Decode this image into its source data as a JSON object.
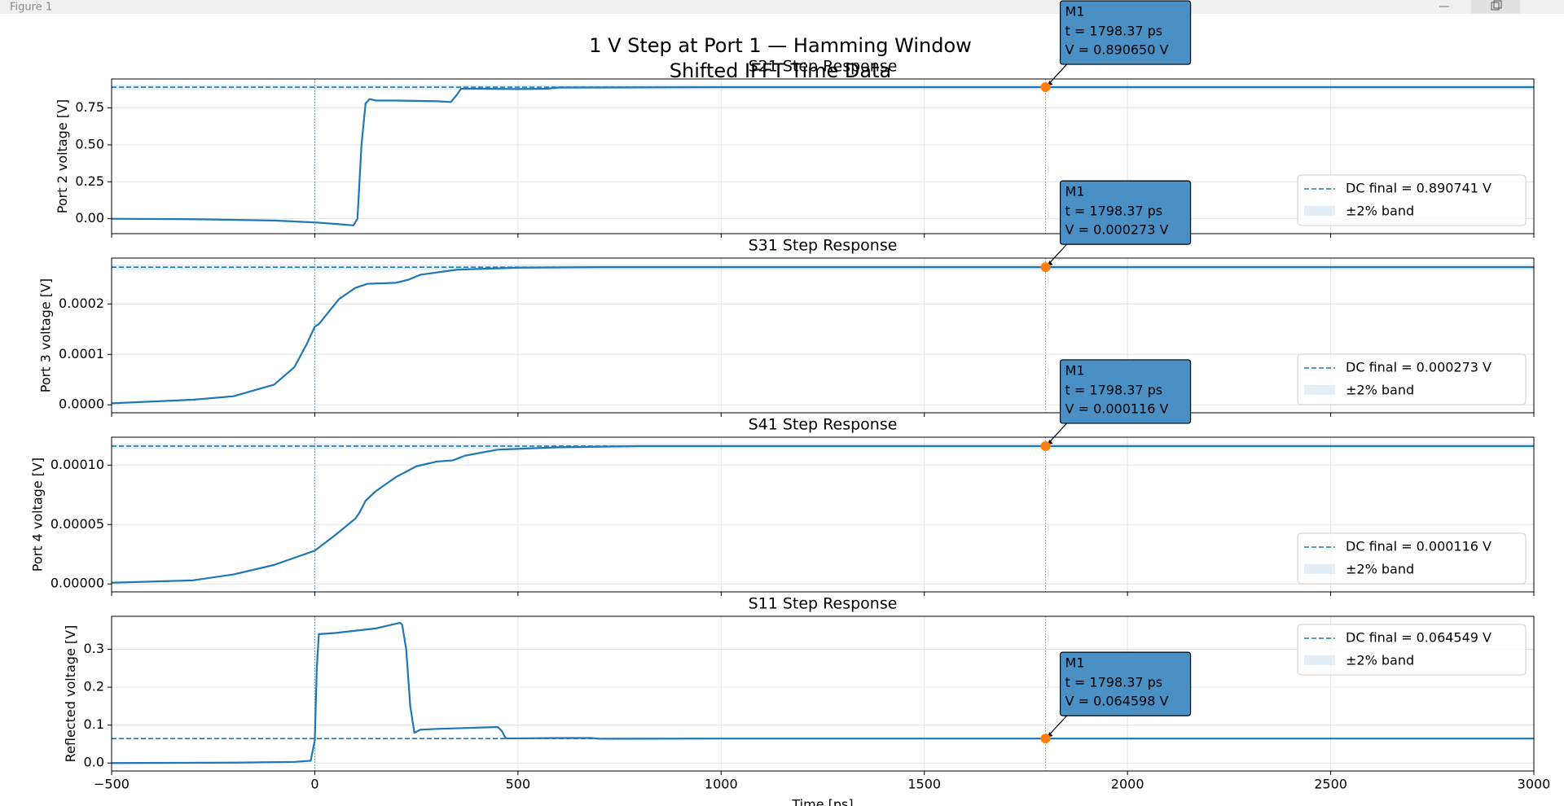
{
  "window": {
    "title": "Figure 1"
  },
  "figure": {
    "title": [
      "1 V Step at Port 1 — Hamming Window",
      "Shifted IFFT Time Data"
    ],
    "xlabel": "Time [ps]",
    "xlim": [
      -500,
      3000
    ],
    "xticks": [
      {
        "value": -500,
        "label": "−500"
      },
      0,
      500,
      1000,
      1500,
      2000,
      2500,
      3000
    ]
  },
  "chart_data": [
    {
      "type": "line",
      "title": "S21 Step Response",
      "ylabel": "Port 2 voltage [V]",
      "grid": true,
      "legend": "lower right",
      "ylim": [
        -0.101,
        0.946
      ],
      "yticks": [
        {
          "value": 0,
          "label": "0.00"
        },
        {
          "value": 0.25,
          "label": "0.25"
        },
        {
          "value": 0.5,
          "label": "0.50"
        },
        {
          "value": 0.75,
          "label": "0.75"
        }
      ],
      "x": [
        -500,
        -300,
        -100,
        0,
        50,
        95,
        105,
        115,
        125,
        135,
        150,
        200,
        300,
        335,
        350,
        360,
        400,
        500,
        570,
        600,
        1000,
        1500,
        2000,
        3000
      ],
      "series": [
        {
          "color": "#1f77b4",
          "values": [
            0,
            -0.003,
            -0.012,
            -0.025,
            -0.035,
            -0.045,
            0.0,
            0.5,
            0.78,
            0.81,
            0.8,
            0.8,
            0.795,
            0.79,
            0.84,
            0.88,
            0.88,
            0.878,
            0.88,
            0.888,
            0.8905,
            0.8907,
            0.8907,
            0.8907
          ]
        }
      ],
      "reference": {
        "name": "DC final = 0.890741 V",
        "value": 0.890741,
        "color": "#1f77b4"
      },
      "band": {
        "name": "±2% band",
        "percent": 2,
        "color": "#1f77b4"
      },
      "vline": 0,
      "marker": {
        "name": "M1",
        "x": 1798.37,
        "y": 0.89065,
        "labels": [
          "t = 1798.37 ps",
          "V = 0.890650 V"
        ],
        "color": "#ff7f0e"
      }
    },
    {
      "type": "line",
      "title": "S31 Step Response",
      "ylabel": "Port 3 voltage [V]",
      "grid": true,
      "legend": "lower right",
      "ylim": [
        -1.58e-05,
        0.000291
      ],
      "yticks": [
        {
          "value": 0,
          "label": "0.0000"
        },
        {
          "value": 0.0001,
          "label": "0.0001"
        },
        {
          "value": 0.0002,
          "label": "0.0002"
        }
      ],
      "x": [
        -500,
        -300,
        -200,
        -100,
        -50,
        -20,
        0,
        10,
        30,
        60,
        100,
        130,
        200,
        230,
        260,
        350,
        500,
        700,
        3000
      ],
      "series": [
        {
          "color": "#1f77b4",
          "values": [
            3e-06,
            1e-05,
            1.7e-05,
            4e-05,
            7.5e-05,
            0.00012,
            0.000155,
            0.00016,
            0.00018,
            0.00021,
            0.000232,
            0.00024,
            0.000242,
            0.000248,
            0.000258,
            0.000268,
            0.000272,
            0.000273,
            0.000273
          ]
        }
      ],
      "reference": {
        "name": "DC final = 0.000273 V",
        "value": 0.000273,
        "color": "#1f77b4"
      },
      "band": {
        "name": "±2% band",
        "percent": 2,
        "color": "#1f77b4"
      },
      "vline": 0,
      "marker": {
        "name": "M1",
        "x": 1798.37,
        "y": 0.000273,
        "labels": [
          "t = 1798.37 ps",
          "V = 0.000273 V"
        ],
        "color": "#ff7f0e"
      }
    },
    {
      "type": "line",
      "title": "S41 Step Response",
      "ylabel": "Port 4 voltage [V]",
      "grid": true,
      "legend": "lower right",
      "ylim": [
        -6.7e-06,
        0.0001235
      ],
      "yticks": [
        {
          "value": 0,
          "label": "0.00000"
        },
        {
          "value": 5e-05,
          "label": "0.00005"
        },
        {
          "value": 0.0001,
          "label": "0.00010"
        }
      ],
      "x": [
        -500,
        -300,
        -200,
        -100,
        0,
        50,
        100,
        110,
        125,
        150,
        200,
        250,
        300,
        340,
        370,
        450,
        600,
        800,
        3000
      ],
      "series": [
        {
          "color": "#1f77b4",
          "values": [
            1e-06,
            3e-06,
            8e-06,
            1.6e-05,
            2.8e-05,
            4.1e-05,
            5.5e-05,
            6e-05,
            7e-05,
            7.8e-05,
            9e-05,
            9.9e-05,
            0.000103,
            0.000104,
            0.000108,
            0.000113,
            0.000115,
            0.000116,
            0.000116
          ]
        }
      ],
      "reference": {
        "name": "DC final = 0.000116 V",
        "value": 0.000116,
        "color": "#1f77b4"
      },
      "band": {
        "name": "±2% band",
        "percent": 2,
        "color": "#1f77b4"
      },
      "vline": 0,
      "marker": {
        "name": "M1",
        "x": 1798.37,
        "y": 0.000116,
        "labels": [
          "t = 1798.37 ps",
          "V = 0.000116 V"
        ],
        "color": "#ff7f0e"
      }
    },
    {
      "type": "line",
      "title": "S11 Step Response",
      "ylabel": "Reflected voltage [V]",
      "grid": true,
      "legend": "upper right",
      "ylim": [
        -0.021,
        0.387
      ],
      "yticks": [
        {
          "value": 0,
          "label": "0.0"
        },
        {
          "value": 0.1,
          "label": "0.1"
        },
        {
          "value": 0.2,
          "label": "0.2"
        },
        {
          "value": 0.3,
          "label": "0.3"
        }
      ],
      "x": [
        -500,
        -200,
        -50,
        -10,
        0,
        5,
        10,
        50,
        150,
        210,
        215,
        225,
        235,
        245,
        260,
        300,
        450,
        460,
        470,
        500,
        600,
        680,
        700,
        1000,
        3000
      ],
      "series": [
        {
          "color": "#1f77b4",
          "values": [
            0,
            0.001,
            0.003,
            0.006,
            0.06,
            0.25,
            0.34,
            0.343,
            0.355,
            0.37,
            0.365,
            0.3,
            0.15,
            0.08,
            0.088,
            0.09,
            0.095,
            0.085,
            0.065,
            0.065,
            0.066,
            0.066,
            0.064,
            0.0645,
            0.0645
          ]
        }
      ],
      "reference": {
        "name": "DC final = 0.064549 V",
        "value": 0.064549,
        "color": "#1f77b4"
      },
      "band": {
        "name": "±2% band",
        "percent": 2,
        "color": "#1f77b4"
      },
      "vline": 0,
      "marker": {
        "name": "M1",
        "x": 1798.37,
        "y": 0.064598,
        "labels": [
          "t = 1798.37 ps",
          "V = 0.064598 V"
        ],
        "color": "#ff7f0e"
      }
    }
  ]
}
